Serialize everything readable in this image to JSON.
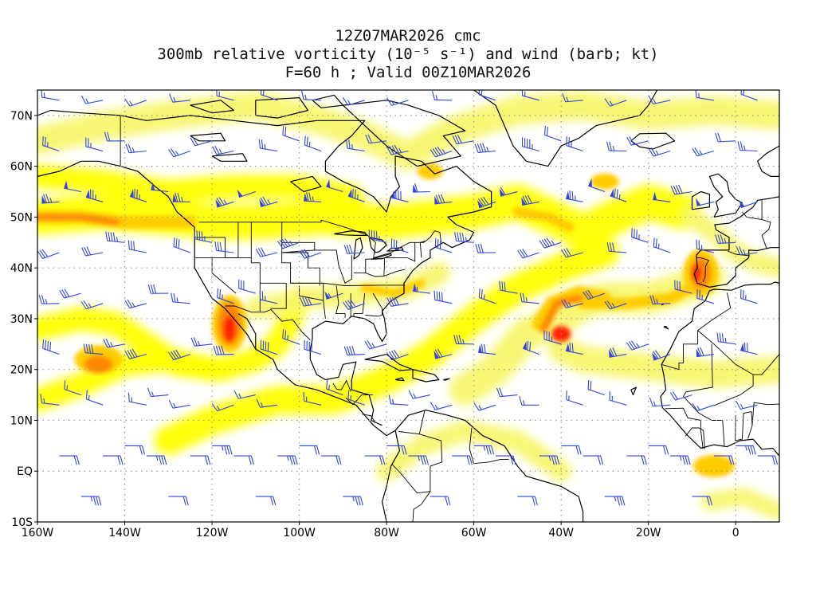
{
  "header": {
    "line1": "12Z07MAR2026 cmc",
    "line2": "300mb relative vorticity (10⁻⁵ s⁻¹) and wind (barb; kt)",
    "line3": "F=60 h ; Valid 00Z10MAR2026"
  },
  "map": {
    "lon_range": [
      -160,
      10
    ],
    "lat_range": [
      -10,
      75
    ],
    "lon_ticks": [
      {
        "lon": -160,
        "label": "160W"
      },
      {
        "lon": -140,
        "label": "140W"
      },
      {
        "lon": -120,
        "label": "120W"
      },
      {
        "lon": -100,
        "label": "100W"
      },
      {
        "lon": -80,
        "label": "80W"
      },
      {
        "lon": -60,
        "label": "60W"
      },
      {
        "lon": -40,
        "label": "40W"
      },
      {
        "lon": -20,
        "label": "20W"
      },
      {
        "lon": 0,
        "label": "0"
      }
    ],
    "lat_ticks": [
      {
        "lat": 70,
        "label": "70N"
      },
      {
        "lat": 60,
        "label": "60N"
      },
      {
        "lat": 50,
        "label": "50N"
      },
      {
        "lat": 40,
        "label": "40N"
      },
      {
        "lat": 30,
        "label": "30N"
      },
      {
        "lat": 20,
        "label": "20N"
      },
      {
        "lat": 10,
        "label": "10N"
      },
      {
        "lat": 0,
        "label": "EQ"
      },
      {
        "lat": -10,
        "label": "10S"
      }
    ],
    "colors": {
      "vort_low": "#ffff00",
      "vort_light": "#f7f76e",
      "vort_mid": "#ffcc00",
      "vort_high": "#ff8800",
      "vort_max": "#ff2200",
      "barb": "#3344dd",
      "coast": "#000000",
      "grid": "#999999"
    },
    "coastline_icon": "coastline-outline-icon",
    "barb_icon": "wind-barb-icon"
  }
}
